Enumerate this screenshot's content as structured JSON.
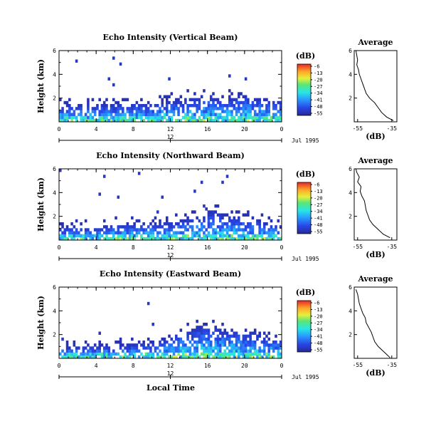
{
  "figure": {
    "xlabel": "Local Time",
    "date_label": "Jul 1995",
    "date_marker": "12",
    "avg_title": "Average",
    "cb_unit": "(dB)",
    "avg_xlabel": "(dB)"
  },
  "chart_data": [
    {
      "type": "heatmap",
      "title": "Echo Intensity (Vertical Beam)",
      "ylabel": "Height (km)",
      "x_ticks": [
        "0",
        "4",
        "8",
        "12",
        "16",
        "20",
        "0"
      ],
      "xlim": [
        0,
        24
      ],
      "y_ticks": [
        "6",
        "4",
        "2"
      ],
      "ylim": [
        0,
        6
      ],
      "colorbar": {
        "label": "(dB)",
        "ticks": [
          "-6",
          "-13",
          "-20",
          "-27",
          "-34",
          "-41",
          "-48",
          "-55"
        ],
        "range": [
          -55,
          -6
        ]
      },
      "echo_top_km": [
        [
          0,
          1.4
        ],
        [
          2,
          1.4
        ],
        [
          4,
          1.4
        ],
        [
          6,
          1.5
        ],
        [
          8,
          1.5
        ],
        [
          10,
          1.5
        ],
        [
          12,
          1.9
        ],
        [
          13,
          1.7
        ],
        [
          14,
          2.1
        ],
        [
          15,
          2.0
        ],
        [
          16,
          2.4
        ],
        [
          17,
          2.1
        ],
        [
          18,
          2.0
        ],
        [
          19,
          2.1
        ],
        [
          20,
          2.2
        ],
        [
          22,
          1.9
        ],
        [
          24,
          1.8
        ]
      ]
    },
    {
      "type": "heatmap",
      "title": "Echo Intensity (Northward Beam)",
      "ylabel": "Height (km)",
      "x_ticks": [
        "0",
        "4",
        "8",
        "12",
        "16",
        "20",
        "0"
      ],
      "xlim": [
        0,
        24
      ],
      "y_ticks": [
        "6",
        "4",
        "2"
      ],
      "ylim": [
        0,
        6
      ],
      "colorbar": {
        "label": "(dB)",
        "ticks": [
          "-6",
          "-13",
          "-20",
          "-27",
          "-34",
          "-41",
          "-48",
          "-55"
        ],
        "range": [
          -55,
          -6
        ]
      },
      "echo_top_km": [
        [
          0,
          1.0
        ],
        [
          2,
          1.1
        ],
        [
          4,
          1.0
        ],
        [
          6,
          1.3
        ],
        [
          8,
          1.3
        ],
        [
          10,
          1.4
        ],
        [
          12,
          1.5
        ],
        [
          13,
          1.7
        ],
        [
          14,
          1.8
        ],
        [
          15,
          1.9
        ],
        [
          16,
          2.1
        ],
        [
          16.6,
          2.6
        ],
        [
          17,
          2.3
        ],
        [
          18,
          2.2
        ],
        [
          19,
          1.9
        ],
        [
          20,
          2.0
        ],
        [
          21,
          1.8
        ],
        [
          22,
          1.5
        ],
        [
          24,
          1.2
        ]
      ]
    },
    {
      "type": "heatmap",
      "title": "Echo Intensity (Eastward Beam)",
      "ylabel": "Height (km)",
      "x_ticks": [
        "0",
        "4",
        "8",
        "12",
        "16",
        "20",
        "0"
      ],
      "xlim": [
        0,
        24
      ],
      "y_ticks": [
        "6",
        "4",
        "2"
      ],
      "ylim": [
        0,
        6
      ],
      "colorbar": {
        "label": "(dB)",
        "ticks": [
          "-6",
          "-13",
          "-20",
          "-27",
          "-34",
          "-41",
          "-48",
          "-55"
        ],
        "range": [
          -55,
          -6
        ]
      },
      "echo_top_km": [
        [
          0,
          0.9
        ],
        [
          2,
          1.0
        ],
        [
          4,
          1.0
        ],
        [
          6,
          1.1
        ],
        [
          8,
          1.2
        ],
        [
          10,
          1.3
        ],
        [
          12,
          1.7
        ],
        [
          13,
          2.3
        ],
        [
          14,
          2.5
        ],
        [
          15,
          2.7
        ],
        [
          16,
          2.9
        ],
        [
          17,
          2.6
        ],
        [
          18,
          2.4
        ],
        [
          19,
          2.5
        ],
        [
          20,
          2.2
        ],
        [
          21,
          2.3
        ],
        [
          22,
          1.8
        ],
        [
          24,
          1.6
        ]
      ]
    },
    {
      "type": "line",
      "title": "Average",
      "xlabel": "(dB)",
      "x_ticks": [
        "-55",
        "-35"
      ],
      "xlim": [
        -57,
        -32
      ],
      "y_ticks": [
        "6",
        "4",
        "2"
      ],
      "ylim": [
        0,
        6
      ],
      "series": [
        {
          "points": [
            [
              -56.0,
              6.0
            ],
            [
              -55.5,
              5.6
            ],
            [
              -55.0,
              5.2
            ],
            [
              -55.5,
              4.8
            ],
            [
              -54.5,
              4.4
            ],
            [
              -54.0,
              4.0
            ],
            [
              -53.0,
              3.6
            ],
            [
              -52.0,
              3.2
            ],
            [
              -51.0,
              2.8
            ],
            [
              -50.0,
              2.4
            ],
            [
              -48.0,
              2.0
            ],
            [
              -45.0,
              1.6
            ],
            [
              -43.0,
              1.2
            ],
            [
              -41.0,
              0.8
            ],
            [
              -38.0,
              0.4
            ],
            [
              -34.0,
              0.1
            ]
          ]
        }
      ]
    },
    {
      "type": "line",
      "title": "Average",
      "xlabel": "(dB)",
      "x_ticks": [
        "-55",
        "-35"
      ],
      "xlim": [
        -57,
        -32
      ],
      "y_ticks": [
        "6",
        "4",
        "2"
      ],
      "ylim": [
        0,
        6
      ],
      "series": [
        {
          "points": [
            [
              -56.0,
              6.0
            ],
            [
              -55.5,
              5.7
            ],
            [
              -54.0,
              5.3
            ],
            [
              -55.0,
              4.9
            ],
            [
              -53.0,
              4.5
            ],
            [
              -53.5,
              4.1
            ],
            [
              -52.5,
              3.7
            ],
            [
              -51.0,
              3.3
            ],
            [
              -50.5,
              2.9
            ],
            [
              -50.0,
              2.5
            ],
            [
              -49.0,
              2.1
            ],
            [
              -48.0,
              1.7
            ],
            [
              -46.0,
              1.3
            ],
            [
              -43.0,
              0.9
            ],
            [
              -40.0,
              0.5
            ],
            [
              -36.0,
              0.2
            ]
          ]
        }
      ]
    },
    {
      "type": "line",
      "title": "Average",
      "xlabel": "(dB)",
      "x_ticks": [
        "-55",
        "-35"
      ],
      "xlim": [
        -57,
        -32
      ],
      "y_ticks": [
        "6",
        "4",
        "2"
      ],
      "ylim": [
        0,
        6
      ],
      "series": [
        {
          "points": [
            [
              -56.0,
              5.8
            ],
            [
              -55.0,
              5.4
            ],
            [
              -54.5,
              5.0
            ],
            [
              -54.0,
              4.6
            ],
            [
              -53.0,
              4.2
            ],
            [
              -52.0,
              3.8
            ],
            [
              -50.5,
              3.4
            ],
            [
              -50.0,
              3.0
            ],
            [
              -48.5,
              2.6
            ],
            [
              -47.0,
              2.2
            ],
            [
              -46.0,
              1.8
            ],
            [
              -45.0,
              1.4
            ],
            [
              -43.0,
              1.0
            ],
            [
              -40.0,
              0.6
            ],
            [
              -37.0,
              0.2
            ],
            [
              -36.0,
              0.05
            ]
          ]
        }
      ]
    }
  ]
}
